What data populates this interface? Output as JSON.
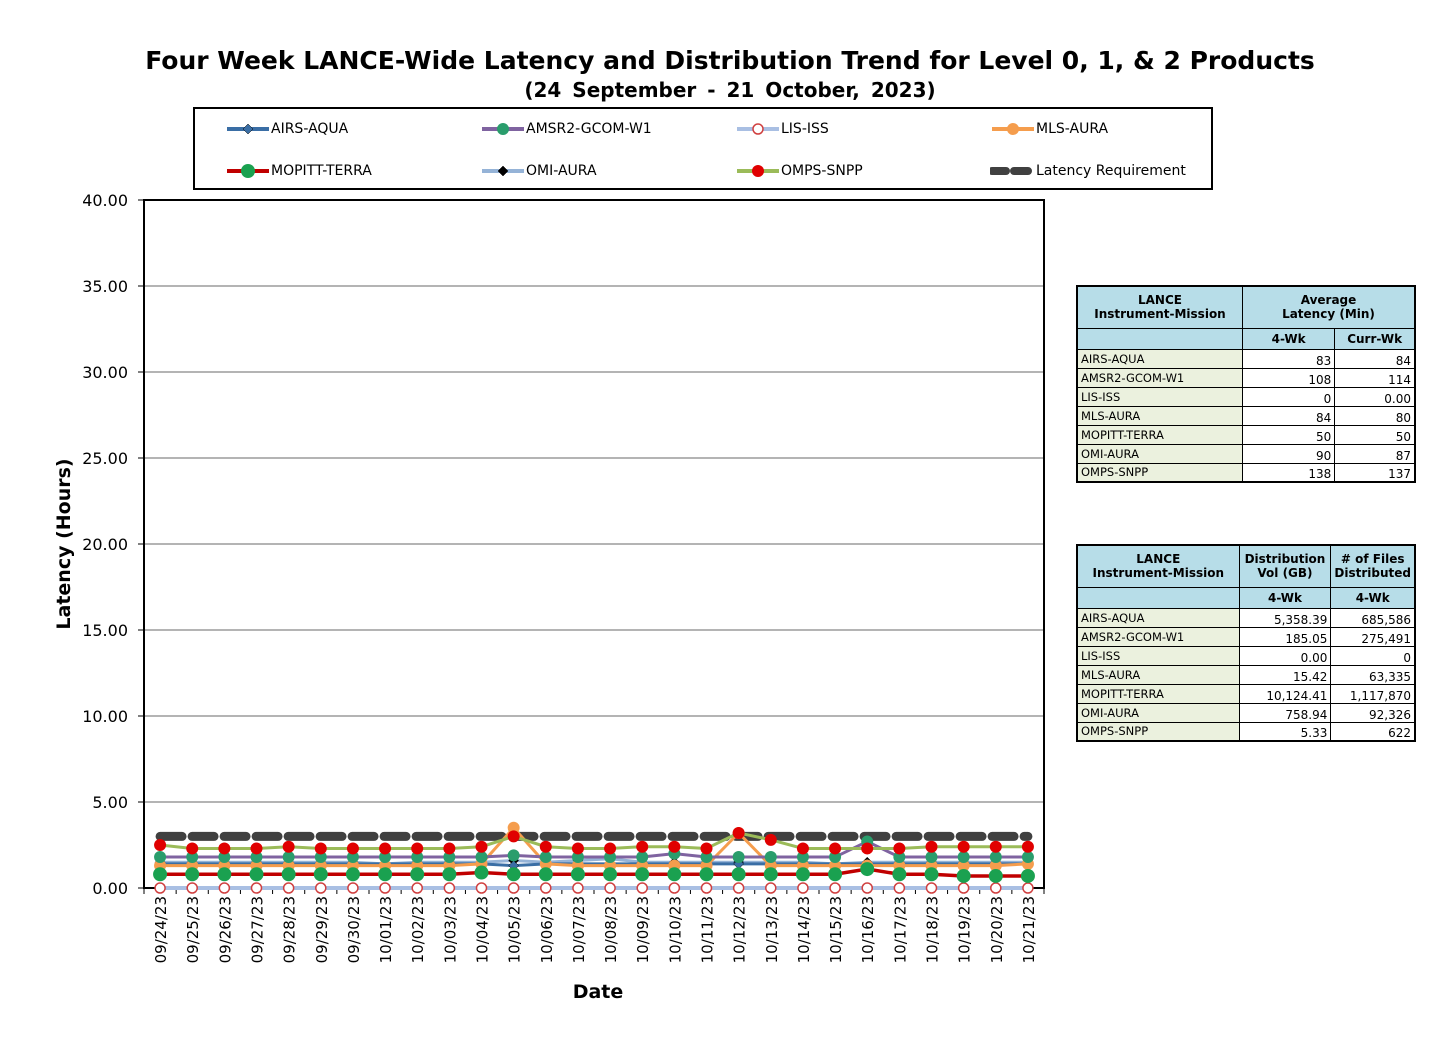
{
  "title": "Four Week LANCE-Wide Latency and Distribution Trend for Level 0, 1, & 2 Products",
  "subtitle": "(24  September  -  21  October,  2023)",
  "colors": {
    "AIRS-AQUA": "#3a6ea5",
    "AMSR2-GCOM-W1": "#7f63a0",
    "LIS-ISS": "#a9bfe3",
    "MLS-AURA": "#f59d4d",
    "MOPITT-TERRA": "#c00000",
    "OMI-AURA": "#95b3d7",
    "OMPS-SNPP": "#9bbb59",
    "Latency Requirement": "#404040",
    "table_header": "#b7dde8",
    "table_name": "#ebf1de"
  },
  "chart_data": {
    "type": "line",
    "xlabel": "Date",
    "ylabel": "Latency (Hours)",
    "ylim": [
      0,
      40
    ],
    "yticks": [
      "0.00",
      "5.00",
      "10.00",
      "15.00",
      "20.00",
      "25.00",
      "30.00",
      "35.00",
      "40.00"
    ],
    "grid": true,
    "legend_position": "top",
    "categories": [
      "09/24/23",
      "09/25/23",
      "09/26/23",
      "09/27/23",
      "09/28/23",
      "09/29/23",
      "09/30/23",
      "10/01/23",
      "10/02/23",
      "10/03/23",
      "10/04/23",
      "10/05/23",
      "10/06/23",
      "10/07/23",
      "10/08/23",
      "10/09/23",
      "10/10/23",
      "10/11/23",
      "10/12/23",
      "10/13/23",
      "10/14/23",
      "10/15/23",
      "10/16/23",
      "10/17/23",
      "10/18/23",
      "10/19/23",
      "10/20/23",
      "10/21/23"
    ],
    "series": [
      {
        "name": "AIRS-AQUA",
        "marker": "diamond",
        "values": [
          1.4,
          1.4,
          1.4,
          1.4,
          1.4,
          1.4,
          1.4,
          1.4,
          1.4,
          1.4,
          1.4,
          1.3,
          1.4,
          1.4,
          1.4,
          1.4,
          1.4,
          1.4,
          1.4,
          1.4,
          1.4,
          1.4,
          1.4,
          1.4,
          1.4,
          1.4,
          1.4,
          1.4
        ]
      },
      {
        "name": "AMSR2-GCOM-W1",
        "marker": "circle",
        "values": [
          1.8,
          1.8,
          1.8,
          1.8,
          1.8,
          1.8,
          1.8,
          1.8,
          1.8,
          1.8,
          1.8,
          1.9,
          1.8,
          1.8,
          1.8,
          1.8,
          2.0,
          1.8,
          1.8,
          1.8,
          1.8,
          1.8,
          2.7,
          1.8,
          1.8,
          1.8,
          1.8,
          1.8
        ]
      },
      {
        "name": "LIS-ISS",
        "marker": "open-circle",
        "values": [
          0.0,
          0.0,
          0.0,
          0.0,
          0.0,
          0.0,
          0.0,
          0.0,
          0.0,
          0.0,
          0.0,
          0.0,
          0.0,
          0.0,
          0.0,
          0.0,
          0.0,
          0.0,
          0.0,
          0.0,
          0.0,
          0.0,
          0.0,
          0.0,
          0.0,
          0.0,
          0.0,
          0.0
        ]
      },
      {
        "name": "MLS-AURA",
        "marker": "circle",
        "values": [
          1.3,
          1.3,
          1.3,
          1.3,
          1.3,
          1.3,
          1.3,
          1.3,
          1.3,
          1.3,
          1.4,
          3.5,
          1.4,
          1.3,
          1.3,
          1.3,
          1.3,
          1.3,
          3.2,
          1.3,
          1.3,
          1.3,
          1.3,
          1.3,
          1.3,
          1.3,
          1.3,
          1.4
        ]
      },
      {
        "name": "MOPITT-TERRA",
        "marker": "circle",
        "values": [
          0.8,
          0.8,
          0.8,
          0.8,
          0.8,
          0.8,
          0.8,
          0.8,
          0.8,
          0.8,
          0.9,
          0.8,
          0.8,
          0.8,
          0.8,
          0.8,
          0.8,
          0.8,
          0.8,
          0.8,
          0.8,
          0.8,
          1.1,
          0.8,
          0.8,
          0.7,
          0.7,
          0.7
        ]
      },
      {
        "name": "OMI-AURA",
        "marker": "diamond",
        "values": [
          1.5,
          1.5,
          1.5,
          1.5,
          1.5,
          1.5,
          1.5,
          1.4,
          1.5,
          1.5,
          1.5,
          1.6,
          1.5,
          1.6,
          1.7,
          1.5,
          1.5,
          1.5,
          1.5,
          1.5,
          1.5,
          1.4,
          1.5,
          1.5,
          1.5,
          1.5,
          1.5,
          1.5
        ]
      },
      {
        "name": "OMPS-SNPP",
        "marker": "circle",
        "values": [
          2.5,
          2.3,
          2.3,
          2.3,
          2.4,
          2.3,
          2.3,
          2.3,
          2.3,
          2.3,
          2.4,
          3.0,
          2.4,
          2.3,
          2.3,
          2.4,
          2.4,
          2.3,
          3.2,
          2.8,
          2.3,
          2.3,
          2.3,
          2.3,
          2.4,
          2.4,
          2.4,
          2.4
        ]
      },
      {
        "name": "Latency Requirement",
        "marker": "none",
        "values": [
          3,
          3,
          3,
          3,
          3,
          3,
          3,
          3,
          3,
          3,
          3,
          3,
          3,
          3,
          3,
          3,
          3,
          3,
          3,
          3,
          3,
          3,
          3,
          3,
          3,
          3,
          3,
          3
        ]
      }
    ]
  },
  "latency_table": {
    "header_mission": "LANCE\nInstrument-Mission",
    "header_avg": "Average\nLatency (Min)",
    "col_4wk": "4-Wk",
    "col_curr": "Curr-Wk",
    "rows": [
      {
        "name": "AIRS-AQUA",
        "four_wk": "83",
        "curr_wk": "84"
      },
      {
        "name": "AMSR2-GCOM-W1",
        "four_wk": "108",
        "curr_wk": "114"
      },
      {
        "name": "LIS-ISS",
        "four_wk": "0",
        "curr_wk": "0.00"
      },
      {
        "name": "MLS-AURA",
        "four_wk": "84",
        "curr_wk": "80"
      },
      {
        "name": "MOPITT-TERRA",
        "four_wk": "50",
        "curr_wk": "50"
      },
      {
        "name": "OMI-AURA",
        "four_wk": "90",
        "curr_wk": "87"
      },
      {
        "name": "OMPS-SNPP",
        "four_wk": "138",
        "curr_wk": "137"
      }
    ]
  },
  "distribution_table": {
    "header_mission": "LANCE\nInstrument-Mission",
    "header_vol": "Distribution\nVol (GB)",
    "header_files": "# of Files\nDistributed",
    "col_vol": "4-Wk",
    "col_files": "4-Wk",
    "rows": [
      {
        "name": "AIRS-AQUA",
        "vol": "5,358.39",
        "files": "685,586"
      },
      {
        "name": "AMSR2-GCOM-W1",
        "vol": "185.05",
        "files": "275,491"
      },
      {
        "name": "LIS-ISS",
        "vol": "0.00",
        "files": "0"
      },
      {
        "name": "MLS-AURA",
        "vol": "15.42",
        "files": "63,335"
      },
      {
        "name": "MOPITT-TERRA",
        "vol": "10,124.41",
        "files": "1,117,870"
      },
      {
        "name": "OMI-AURA",
        "vol": "758.94",
        "files": "92,326"
      },
      {
        "name": "OMPS-SNPP",
        "vol": "5.33",
        "files": "622"
      }
    ]
  }
}
